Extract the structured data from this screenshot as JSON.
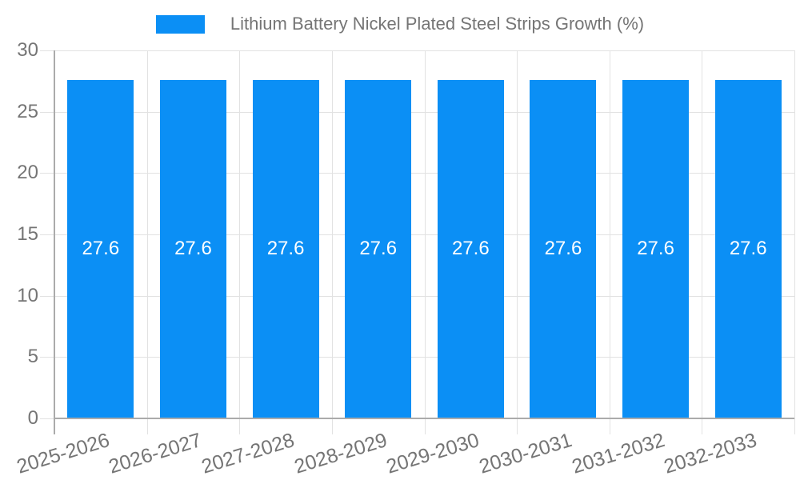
{
  "legend": {
    "label": "Lithium Battery Nickel Plated Steel Strips Growth (%)"
  },
  "chart_data": {
    "type": "bar",
    "title": "",
    "xlabel": "",
    "ylabel": "",
    "legend_position": "top",
    "legend_entries": [
      "Lithium Battery Nickel Plated Steel Strips Growth (%)"
    ],
    "categories": [
      "2025-2026",
      "2026-2027",
      "2027-2028",
      "2028-2029",
      "2029-2030",
      "2030-2031",
      "2031-2032",
      "2032-2033"
    ],
    "series": [
      {
        "name": "Lithium Battery Nickel Plated Steel Strips Growth (%)",
        "values": [
          27.6,
          27.6,
          27.6,
          27.6,
          27.6,
          27.6,
          27.6,
          27.6
        ]
      }
    ],
    "value_labels": [
      "27.6",
      "27.6",
      "27.6",
      "27.6",
      "27.6",
      "27.6",
      "27.6",
      "27.6"
    ],
    "ylim": [
      0,
      30
    ],
    "yticks": [
      0,
      5,
      10,
      15,
      20,
      25,
      30
    ],
    "grid": true,
    "colors": {
      "bar": "#0b8ff5",
      "gridline": "#e2e2e2",
      "axis": "#ababab",
      "tick_label": "#757575",
      "value_label": "#ffffff",
      "legend_text": "#757575",
      "background": "#ffffff"
    }
  }
}
